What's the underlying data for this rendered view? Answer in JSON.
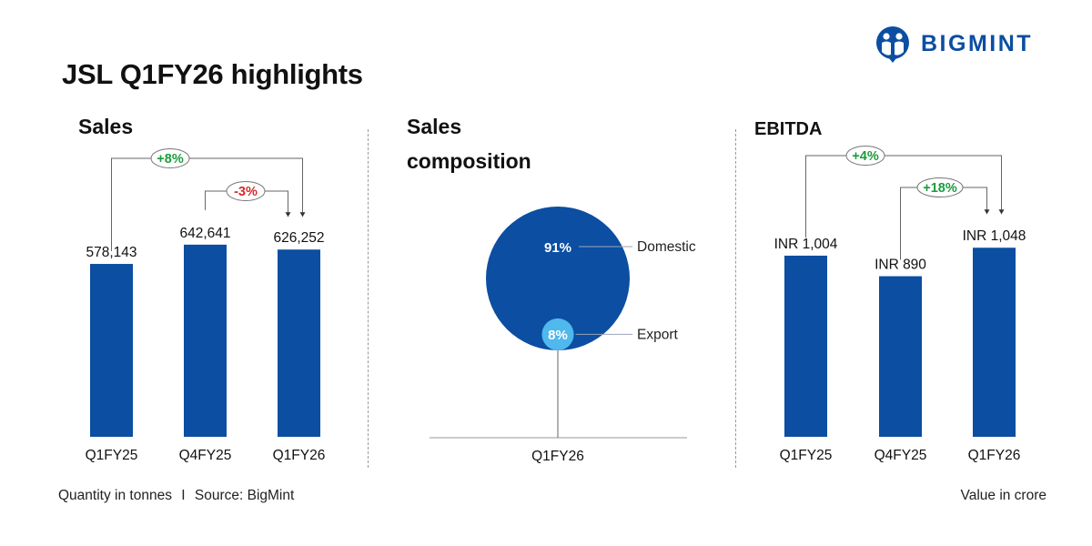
{
  "title": "JSL Q1FY26 highlights",
  "brand": {
    "name": "BIGMINT",
    "logo_icon": "bigmint-logo-icon",
    "color": "#0b4ea2"
  },
  "footer": {
    "left": "Quantity in tonnes",
    "separator": "I",
    "source": "Source: BigMint",
    "right": "Value in crore"
  },
  "colors": {
    "bar": "#0b4ea2",
    "domestic": "#0b4ea2",
    "export": "#4fb8ec",
    "positive": "#1a9c3c",
    "negative": "#d62828"
  },
  "chart_data": [
    {
      "type": "bar",
      "title": "Sales",
      "categories": [
        "Q1FY25",
        "Q4FY25",
        "Q1FY26"
      ],
      "values": [
        578143,
        642641,
        626252
      ],
      "value_labels": [
        "578,143",
        "642,641",
        "626,252"
      ],
      "ylim": [
        0,
        700000
      ],
      "grid": false,
      "annotations": [
        {
          "label": "+8%",
          "from": "Q1FY25",
          "to": "Q1FY26",
          "sign": "positive"
        },
        {
          "label": "-3%",
          "from": "Q4FY25",
          "to": "Q1FY26",
          "sign": "negative"
        }
      ]
    },
    {
      "type": "pie",
      "title": "Sales composition",
      "title_lines": [
        "Sales",
        "composition"
      ],
      "categories": [
        "Q1FY26"
      ],
      "series": [
        {
          "name": "Domestic",
          "value": 91,
          "label": "91%"
        },
        {
          "name": "Export",
          "value": 8,
          "label": "8%"
        }
      ],
      "grid": false
    },
    {
      "type": "bar",
      "title": "EBITDA",
      "categories": [
        "Q1FY25",
        "Q4FY25",
        "Q1FY26"
      ],
      "values": [
        1004,
        890,
        1048
      ],
      "value_labels": [
        "INR 1,004",
        "INR 890",
        "INR 1,048"
      ],
      "ylim": [
        0,
        1150
      ],
      "grid": false,
      "annotations": [
        {
          "label": "+4%",
          "from": "Q1FY25",
          "to": "Q1FY26",
          "sign": "positive"
        },
        {
          "label": "+18%",
          "from": "Q4FY25",
          "to": "Q1FY26",
          "sign": "positive"
        }
      ]
    }
  ]
}
